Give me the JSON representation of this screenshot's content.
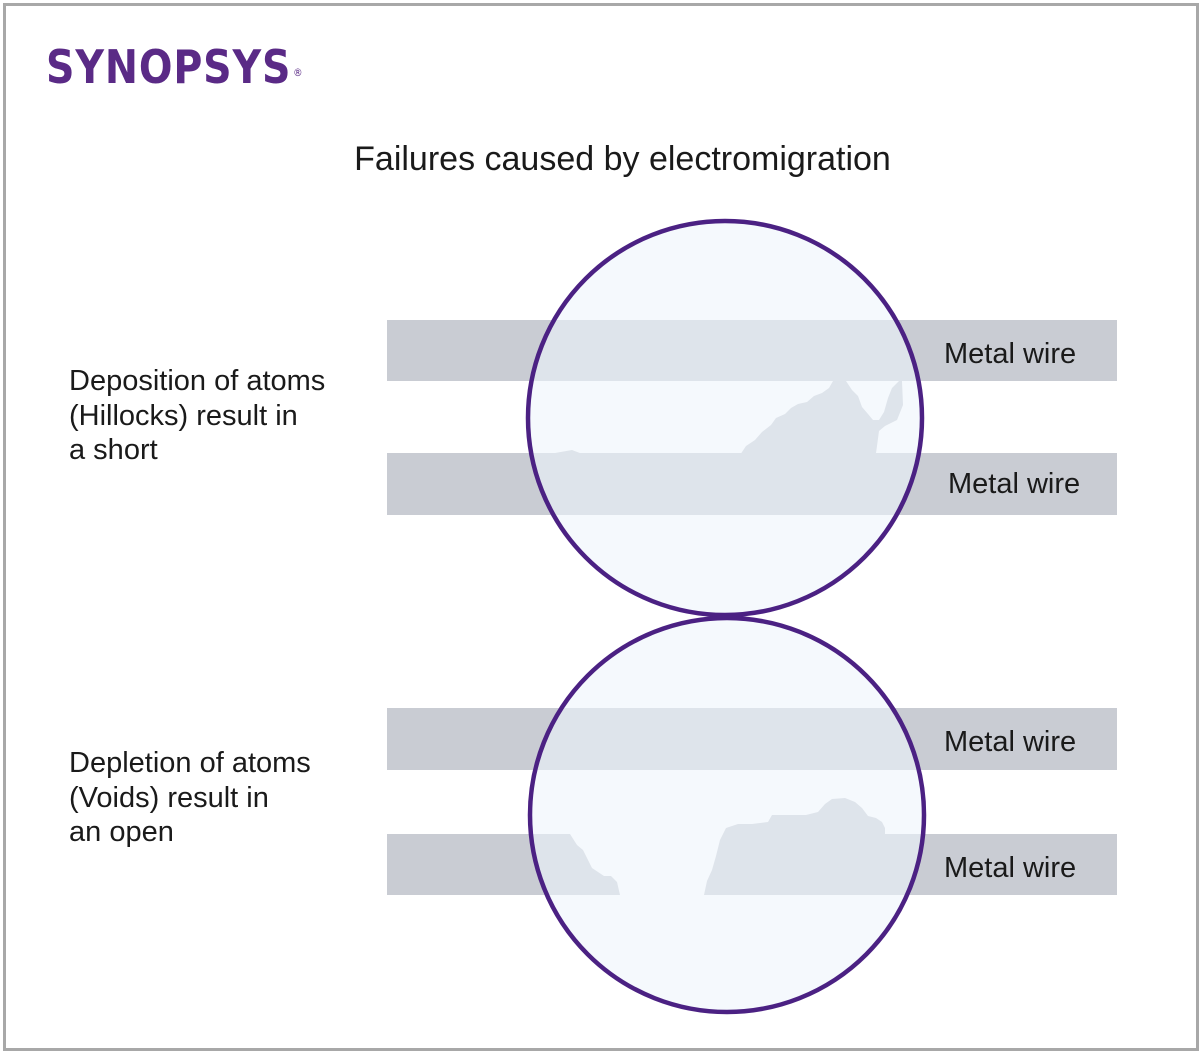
{
  "logo": {
    "text": "SYNOPSYS",
    "mark": "®",
    "color": "#5a2a86"
  },
  "title": "Failures caused by electromigration",
  "panels": [
    {
      "caption": "Deposition of atoms\n(Hillocks) result in\na short",
      "wire_labels": [
        "Metal wire",
        "Metal wire"
      ]
    },
    {
      "caption": "Depletion of atoms\n(Voids) result in\nan open",
      "wire_labels": [
        "Metal wire",
        "Metal wire"
      ]
    }
  ],
  "colors": {
    "wire": "#c9ccd3",
    "circle_stroke": "#4b2183",
    "circle_fill": "#eef5fb"
  }
}
